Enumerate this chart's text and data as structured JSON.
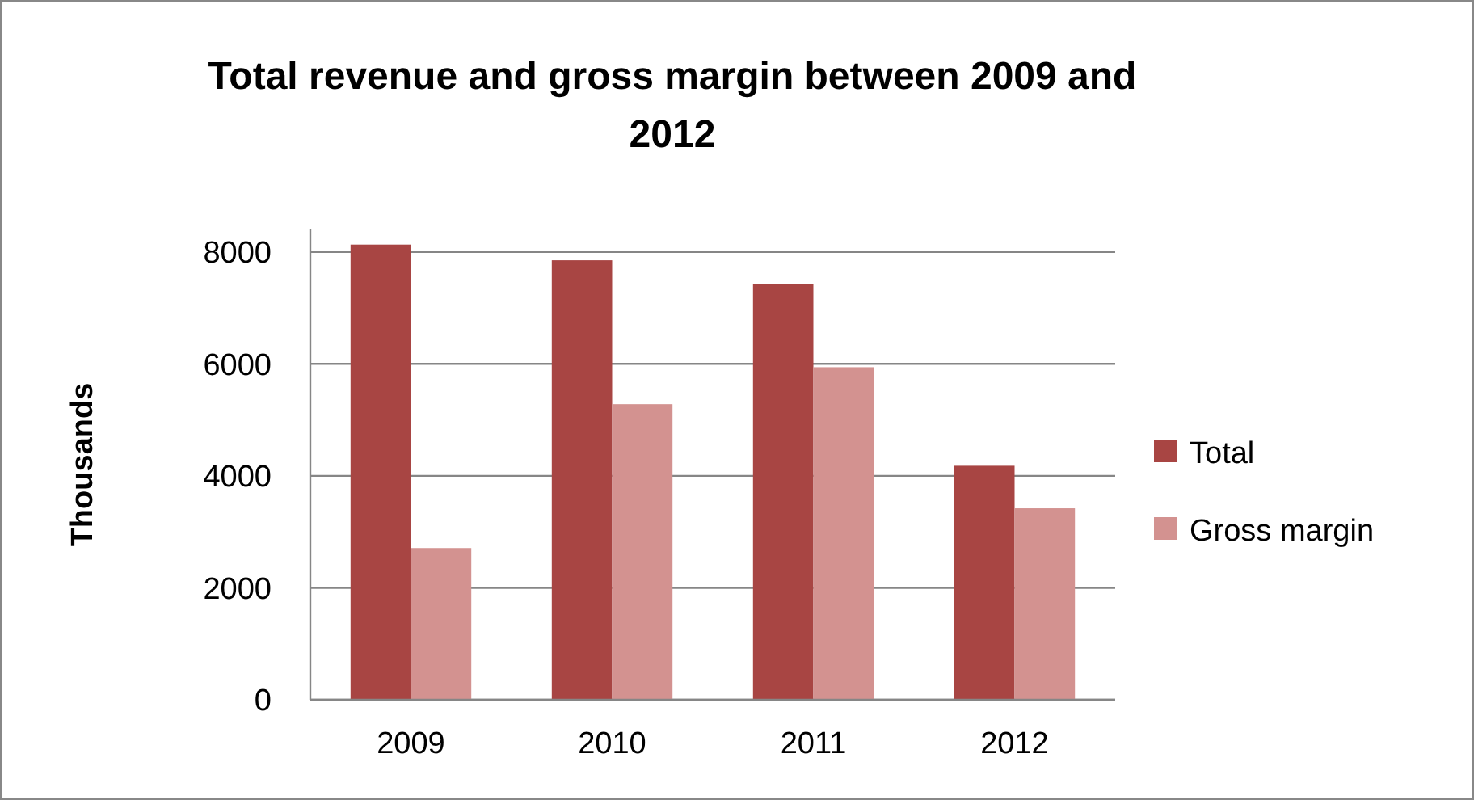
{
  "chart_data": {
    "type": "bar",
    "title": "Total revenue and gross margin between 2009 and 2012",
    "ylabel": "Thousands",
    "categories": [
      "2009",
      "2010",
      "2011",
      "2012"
    ],
    "series": [
      {
        "name": "Total",
        "color": "#a84543",
        "values": [
          8130,
          7850,
          7420,
          4180
        ]
      },
      {
        "name": "Gross margin",
        "color": "#d39290",
        "values": [
          2710,
          5280,
          5940,
          3420
        ]
      }
    ],
    "ylim": [
      0,
      8400
    ],
    "yticks": [
      0,
      2000,
      4000,
      6000,
      8000
    ],
    "grid": "y",
    "legend": "right"
  }
}
